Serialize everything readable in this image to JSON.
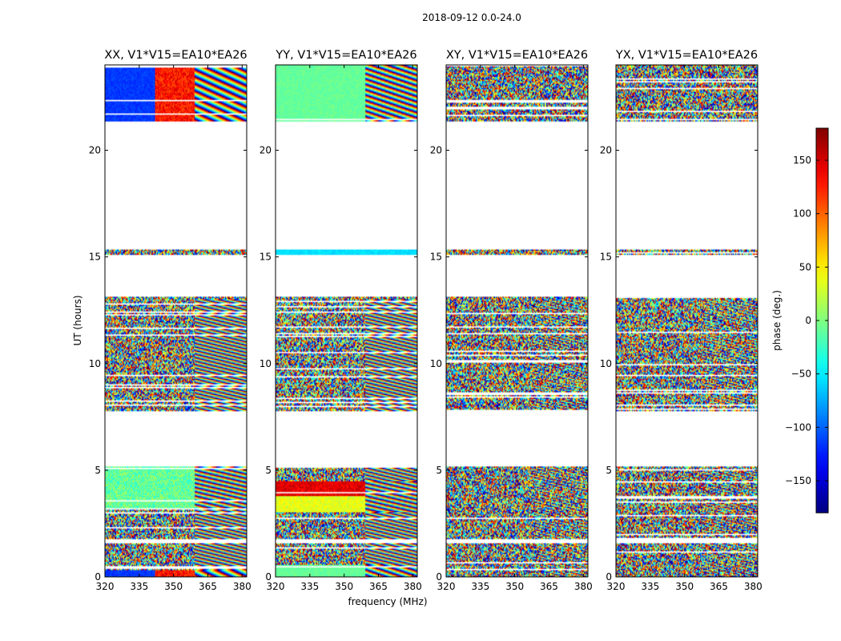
{
  "chart_data": {
    "type": "heatmap",
    "title": "2018-09-12 0.0-24.0",
    "xlabel": "frequency (MHz)",
    "ylabel": "UT (hours)",
    "xlim": [
      320,
      382
    ],
    "ylim": [
      0,
      24
    ],
    "x_ticks": [
      "320",
      "335",
      "350",
      "365",
      "380"
    ],
    "x_tick_values": [
      320,
      335,
      350,
      365,
      380
    ],
    "y_ticks": [
      "0",
      "5",
      "10",
      "15",
      "20"
    ],
    "y_tick_values": [
      0,
      5,
      10,
      15,
      20
    ],
    "data_row_ranges_hours": [
      [
        0.0,
        1.55
      ],
      [
        1.75,
        5.2
      ],
      [
        7.75,
        10.3
      ],
      [
        10.3,
        13.15
      ],
      [
        15.1,
        15.35
      ],
      [
        21.35,
        24.0
      ]
    ],
    "colorbar": {
      "label": "phase (deg.)",
      "range": [
        -180,
        180
      ],
      "ticks": [
        "−150",
        "−100",
        "−50",
        "0",
        "50",
        "100",
        "150"
      ],
      "tick_values": [
        -150,
        -100,
        -50,
        0,
        50,
        100,
        150
      ],
      "colormap": "jet"
    },
    "panels": [
      {
        "title": "XX, V1*V15=EA10*EA26",
        "pattern": "xx"
      },
      {
        "title": "YY, V1*V15=EA10*EA26",
        "pattern": "yy"
      },
      {
        "title": "XY, V1*V15=EA10*EA26",
        "pattern": "noise"
      },
      {
        "title": "YX, V1*V15=EA10*EA26",
        "pattern": "noise"
      }
    ]
  }
}
